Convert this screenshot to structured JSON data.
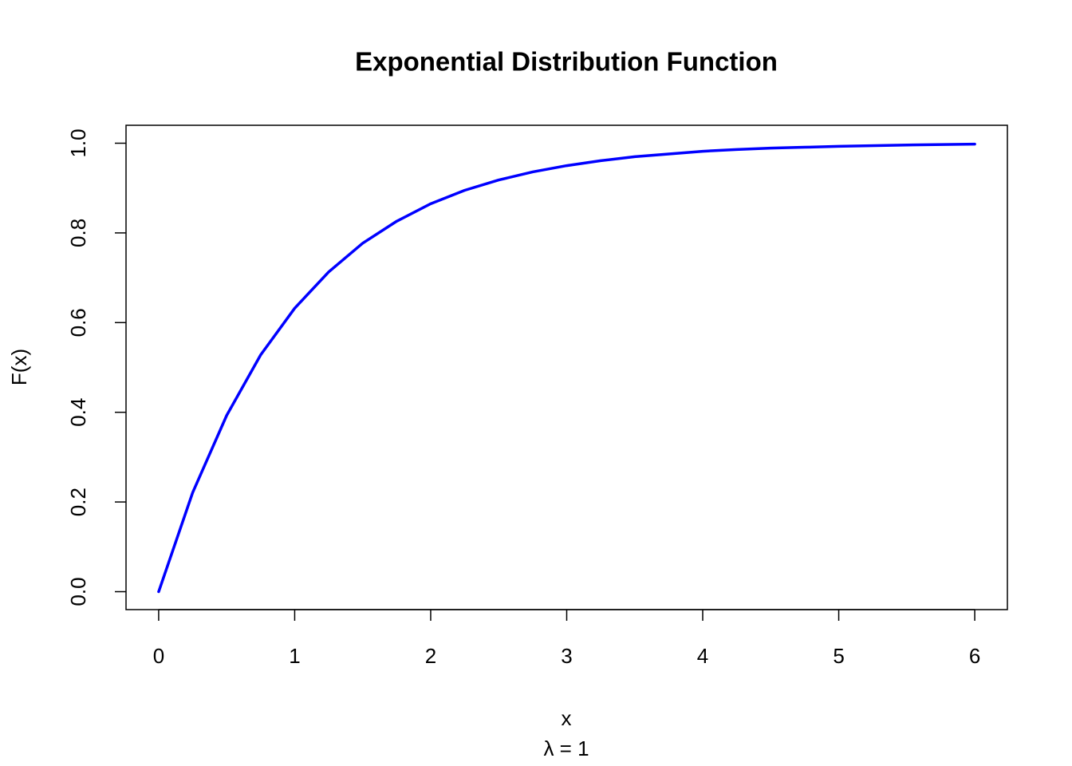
{
  "chart_data": {
    "type": "line",
    "title": "Exponential Distribution Function",
    "x_label": "x",
    "y_label": "F(x)",
    "subtitle": "λ = 1",
    "x": [
      0,
      0.25,
      0.5,
      0.75,
      1,
      1.25,
      1.5,
      1.75,
      2,
      2.25,
      2.5,
      2.75,
      3,
      3.25,
      3.5,
      3.75,
      4,
      4.25,
      4.5,
      4.75,
      5,
      5.5,
      6
    ],
    "values": [
      0,
      0.221,
      0.393,
      0.528,
      0.632,
      0.713,
      0.777,
      0.826,
      0.865,
      0.895,
      0.918,
      0.936,
      0.95,
      0.961,
      0.97,
      0.976,
      0.982,
      0.986,
      0.989,
      0.991,
      0.993,
      0.996,
      0.998
    ],
    "color": "#0000ff",
    "xlim": [
      -0.24,
      6.24
    ],
    "ylim": [
      -0.04,
      1.04
    ],
    "xticks": [
      0,
      1,
      2,
      3,
      4,
      5,
      6
    ],
    "yticks": [
      {
        "value": 0,
        "label": "0.0"
      },
      0.2,
      0.4,
      0.6,
      0.8,
      {
        "value": 1,
        "label": "1.0"
      }
    ],
    "grid": false
  }
}
